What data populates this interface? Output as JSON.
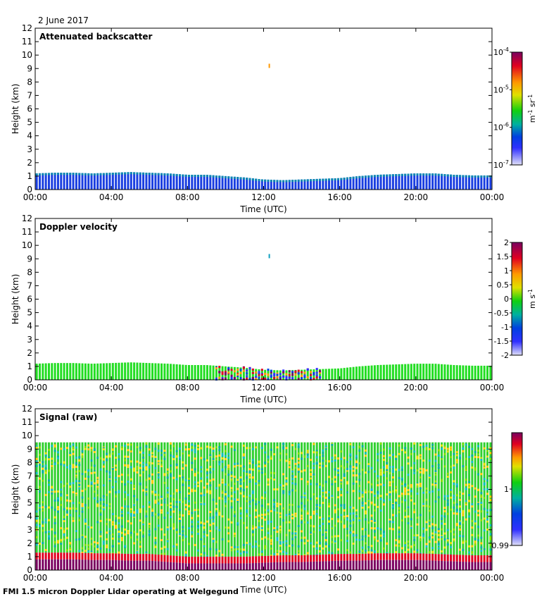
{
  "date_label": "2 June 2017",
  "footer": "FMI 1.5 micron Doppler Lidar operating at Welgegund",
  "chart_data": [
    {
      "type": "heatmap",
      "title": "Attenuated backscatter",
      "xlabel": "Time (UTC)",
      "ylabel": "Height (km)",
      "xlim": [
        0,
        24
      ],
      "ylim": [
        0,
        12
      ],
      "xticks": [
        "00:00",
        "04:00",
        "08:00",
        "12:00",
        "16:00",
        "20:00",
        "00:00"
      ],
      "yticks": [
        "0",
        "1",
        "2",
        "3",
        "4",
        "5",
        "6",
        "7",
        "8",
        "9",
        "10",
        "11",
        "12"
      ],
      "colorbar": {
        "scale": "log",
        "ticks": [
          {
            "base": "10",
            "exp": "-4"
          },
          {
            "base": "10",
            "exp": "-5"
          },
          {
            "base": "10",
            "exp": "-6"
          },
          {
            "base": "10",
            "exp": "-7"
          }
        ],
        "unit_a": "m",
        "unit_exp_a": "-1",
        "unit_b": " sr",
        "unit_exp_b": "-1"
      },
      "layer_top_km": [
        1.2,
        1.25,
        1.25,
        1.2,
        1.25,
        1.3,
        1.25,
        1.2,
        1.1,
        1.1,
        1.0,
        0.9,
        0.75,
        0.7,
        0.75,
        0.8,
        0.85,
        1.0,
        1.1,
        1.15,
        1.2,
        1.2,
        1.1,
        1.05,
        1.05
      ],
      "cloud_event": {
        "time_h": 12.3,
        "height_km": 9.2
      }
    },
    {
      "type": "heatmap",
      "title": "Doppler velocity",
      "xlabel": "Time (UTC)",
      "ylabel": "Height (km)",
      "xlim": [
        0,
        24
      ],
      "ylim": [
        0,
        12
      ],
      "xticks": [
        "00:00",
        "04:00",
        "08:00",
        "12:00",
        "16:00",
        "20:00",
        "00:00"
      ],
      "yticks": [
        "0",
        "1",
        "2",
        "3",
        "4",
        "5",
        "6",
        "7",
        "8",
        "9",
        "10",
        "11",
        "12"
      ],
      "colorbar": {
        "scale": "linear",
        "range": [
          -2,
          2
        ],
        "ticks": [
          "2",
          "1.5",
          "1",
          "0.5",
          "0",
          "-0.5",
          "-1",
          "-1.5",
          "-2"
        ],
        "unit_a": "m",
        "unit_b": " s",
        "unit_exp_b": "-1"
      },
      "layer_top_km": [
        1.2,
        1.25,
        1.25,
        1.2,
        1.25,
        1.3,
        1.25,
        1.2,
        1.1,
        1.1,
        1.0,
        0.9,
        0.75,
        0.7,
        0.75,
        0.8,
        0.85,
        1.0,
        1.1,
        1.15,
        1.2,
        1.2,
        1.1,
        1.05,
        1.05
      ],
      "cloud_event": {
        "time_h": 12.3,
        "height_km": 9.2
      }
    },
    {
      "type": "heatmap",
      "title": "Signal (raw)",
      "xlabel": "Time (UTC)",
      "ylabel": "Height (km)",
      "xlim": [
        0,
        24
      ],
      "ylim": [
        0,
        12
      ],
      "xticks": [
        "00:00",
        "04:00",
        "08:00",
        "12:00",
        "16:00",
        "20:00",
        "00:00"
      ],
      "yticks": [
        "0",
        "1",
        "2",
        "3",
        "4",
        "5",
        "6",
        "7",
        "8",
        "9",
        "10",
        "11",
        "12"
      ],
      "colorbar": {
        "scale": "linear",
        "range": [
          0.99,
          1.01
        ],
        "ticks": [
          "1",
          "0.99"
        ]
      },
      "data_top_km": 9.5,
      "strong_layer_top_km": [
        1.3,
        1.3,
        1.3,
        1.25,
        1.25,
        1.2,
        1.2,
        1.1,
        1.0,
        1.0,
        1.0,
        1.0,
        1.05,
        1.1,
        1.1,
        1.15,
        1.2,
        1.2,
        1.25,
        1.25,
        1.25,
        1.2,
        1.15,
        1.1,
        1.1
      ]
    }
  ]
}
